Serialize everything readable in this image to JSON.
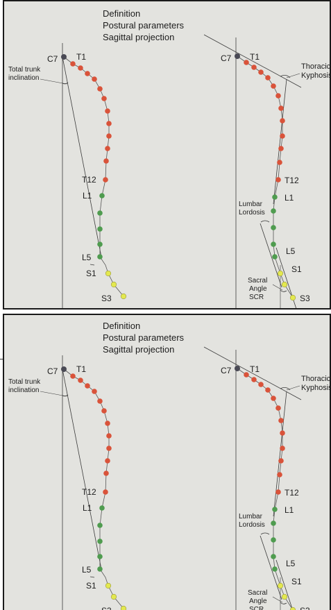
{
  "title": {
    "line1": "Definition",
    "line2": "Postural parameters",
    "line3": "Sagittal projection"
  },
  "labels": {
    "c7_left": "C7",
    "t1_left": "T1",
    "trunk_line1": "Total trunk",
    "trunk_line2": "inclination",
    "t12_left": "T12",
    "l1_left": "L1",
    "l5_left": "L5",
    "s1_left": "S1",
    "s3_left": "S3",
    "c7_right": "C7",
    "t1_right": "T1",
    "kyph_line1": "Thoracic",
    "kyph_line2": "Kyphosis",
    "t12_right": "T12",
    "l1_right": "L1",
    "lord_line1": "Lumbar",
    "lord_line2": "Lordosis",
    "l5_right": "L5",
    "s1_right": "S1",
    "sacral_line1": "Sacral",
    "sacral_line2": "Angle",
    "sacral_line3": "SCR",
    "s3_right": "S3"
  },
  "colors": {
    "background": "#e3e3df",
    "c7": "#4a4a55",
    "thoracic": "#d9533a",
    "lumbar": "#4f9c4f",
    "sacral": "#e3e84f",
    "lines": "#3a3a3a"
  }
}
